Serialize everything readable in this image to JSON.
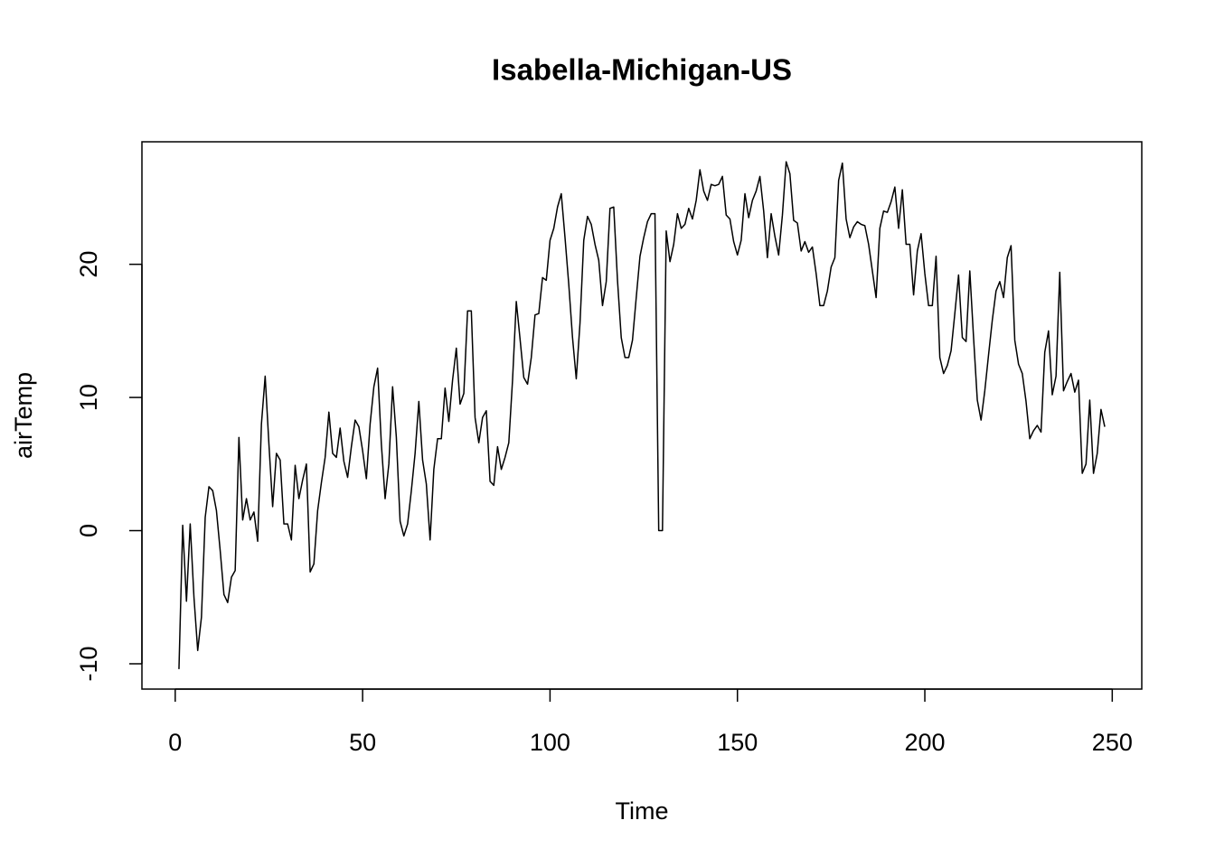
{
  "chart_data": {
    "type": "line",
    "title": "Isabella-Michigan-US",
    "x_label": "Time",
    "y_label": "airTemp",
    "xlim": [
      -8.88,
      257.88
    ],
    "ylim": [
      -11.9,
      29.2
    ],
    "xticks": [
      0,
      50,
      100,
      150,
      200,
      250
    ],
    "yticks": [
      -10,
      0,
      10,
      20
    ],
    "x": [
      1,
      2,
      3,
      4,
      5,
      6,
      7,
      8,
      9,
      10,
      11,
      12,
      13,
      14,
      15,
      16,
      17,
      18,
      19,
      20,
      21,
      22,
      23,
      24,
      25,
      26,
      27,
      28,
      29,
      30,
      31,
      32,
      33,
      34,
      35,
      36,
      37,
      38,
      39,
      40,
      41,
      42,
      43,
      44,
      45,
      46,
      47,
      48,
      49,
      50,
      51,
      52,
      53,
      54,
      55,
      56,
      57,
      58,
      59,
      60,
      61,
      62,
      63,
      64,
      65,
      66,
      67,
      68,
      69,
      70,
      71,
      72,
      73,
      74,
      75,
      76,
      77,
      78,
      79,
      80,
      81,
      82,
      83,
      84,
      85,
      86,
      87,
      88,
      89,
      90,
      91,
      92,
      93,
      94,
      95,
      96,
      97,
      98,
      99,
      100,
      101,
      102,
      103,
      104,
      105,
      106,
      107,
      108,
      109,
      110,
      111,
      112,
      113,
      114,
      115,
      116,
      117,
      118,
      119,
      120,
      121,
      122,
      123,
      124,
      125,
      126,
      127,
      128,
      129,
      130,
      131,
      132,
      133,
      134,
      135,
      136,
      137,
      138,
      139,
      140,
      141,
      142,
      143,
      144,
      145,
      146,
      147,
      148,
      149,
      150,
      151,
      152,
      153,
      154,
      155,
      156,
      157,
      158,
      159,
      160,
      161,
      162,
      163,
      164,
      165,
      166,
      167,
      168,
      169,
      170,
      171,
      172,
      173,
      174,
      175,
      176,
      177,
      178,
      179,
      180,
      181,
      182,
      183,
      184,
      185,
      186,
      187,
      188,
      189,
      190,
      191,
      192,
      193,
      194,
      195,
      196,
      197,
      198,
      199,
      200,
      201,
      202,
      203,
      204,
      205,
      206,
      207,
      208,
      209,
      210,
      211,
      212,
      213,
      214,
      215,
      216,
      217,
      218,
      219,
      220,
      221,
      222,
      223,
      224,
      225,
      226,
      227,
      228,
      229,
      230,
      231,
      232,
      233,
      234,
      235,
      236,
      237,
      238,
      239,
      240,
      241,
      242,
      243,
      244,
      245,
      246,
      247,
      248
    ],
    "series": [
      {
        "color": "#000000",
        "values": [
          -10.4,
          0.4,
          -5.3,
          0.5,
          -5,
          -9,
          -6.5,
          1,
          3.3,
          3,
          1.5,
          -1.5,
          -4.8,
          -5.4,
          -3.5,
          -3,
          7,
          0.8,
          2.4,
          0.8,
          1.4,
          -0.8,
          8,
          11.6,
          6.5,
          1.8,
          5.8,
          5.3,
          0.5,
          0.5,
          -0.7,
          4.9,
          2.4,
          3.8,
          5,
          -3.1,
          -2.5,
          1.5,
          3.6,
          5.5,
          8.9,
          5.8,
          5.5,
          7.7,
          5.2,
          4,
          6.3,
          8.3,
          7.8,
          6,
          3.9,
          8,
          10.8,
          12.2,
          6.5,
          2.4,
          5,
          10.8,
          7,
          0.7,
          -0.4,
          0.5,
          3,
          5.8,
          9.7,
          5.3,
          3.5,
          -0.7,
          4.6,
          6.9,
          6.9,
          10.7,
          8.2,
          11.3,
          13.7,
          9.5,
          10.3,
          16.5,
          16.5,
          8.5,
          6.6,
          8.5,
          9,
          3.7,
          3.4,
          6.3,
          4.6,
          5.5,
          6.6,
          11.3,
          17.2,
          14.4,
          11.5,
          11,
          13,
          16.2,
          16.3,
          19,
          18.8,
          21.8,
          22.7,
          24.3,
          25.3,
          22,
          18.5,
          14.5,
          11.4,
          15.6,
          21.8,
          23.6,
          23,
          21.5,
          20.3,
          16.9,
          18.7,
          24.2,
          24.3,
          18.8,
          14.5,
          13,
          13,
          14.3,
          17.5,
          20.6,
          22,
          23.2,
          23.8,
          23.8,
          0,
          0,
          22.5,
          20.2,
          21.5,
          23.8,
          22.7,
          23,
          24.2,
          23.4,
          24.8,
          27.1,
          25.5,
          24.8,
          26,
          25.9,
          26,
          26.6,
          23.7,
          23.4,
          21.7,
          20.7,
          21.8,
          25.3,
          23.5,
          24.8,
          25.5,
          26.6,
          24,
          20.5,
          23.8,
          22.1,
          20.7,
          23.7,
          27.7,
          26.8,
          23.3,
          23.1,
          21,
          21.7,
          20.9,
          21.3,
          19.3,
          16.9,
          16.9,
          18,
          19.8,
          20.5,
          26.3,
          27.6,
          23.4,
          22,
          22.8,
          23.2,
          23,
          22.9,
          21.5,
          19.5,
          17.5,
          22.7,
          24,
          23.9,
          24.7,
          25.8,
          22.7,
          25.6,
          21.5,
          21.5,
          17.7,
          21,
          22.3,
          19.3,
          16.9,
          16.9,
          20.6,
          13,
          11.8,
          12.4,
          13.5,
          16.3,
          19.2,
          14.5,
          14.2,
          19.5,
          14.5,
          9.8,
          8.3,
          10.5,
          13.2,
          15.8,
          18,
          18.7,
          17.5,
          20.5,
          21.4,
          14.3,
          12.5,
          11.8,
          9.7,
          6.9,
          7.5,
          7.9,
          7.4,
          13.4,
          15,
          10.2,
          11.6,
          19.4,
          10.5,
          11.2,
          11.8,
          10.4,
          11.3,
          4.3,
          5,
          9.8,
          4.3,
          5.8,
          9.1,
          7.8
        ]
      }
    ]
  }
}
